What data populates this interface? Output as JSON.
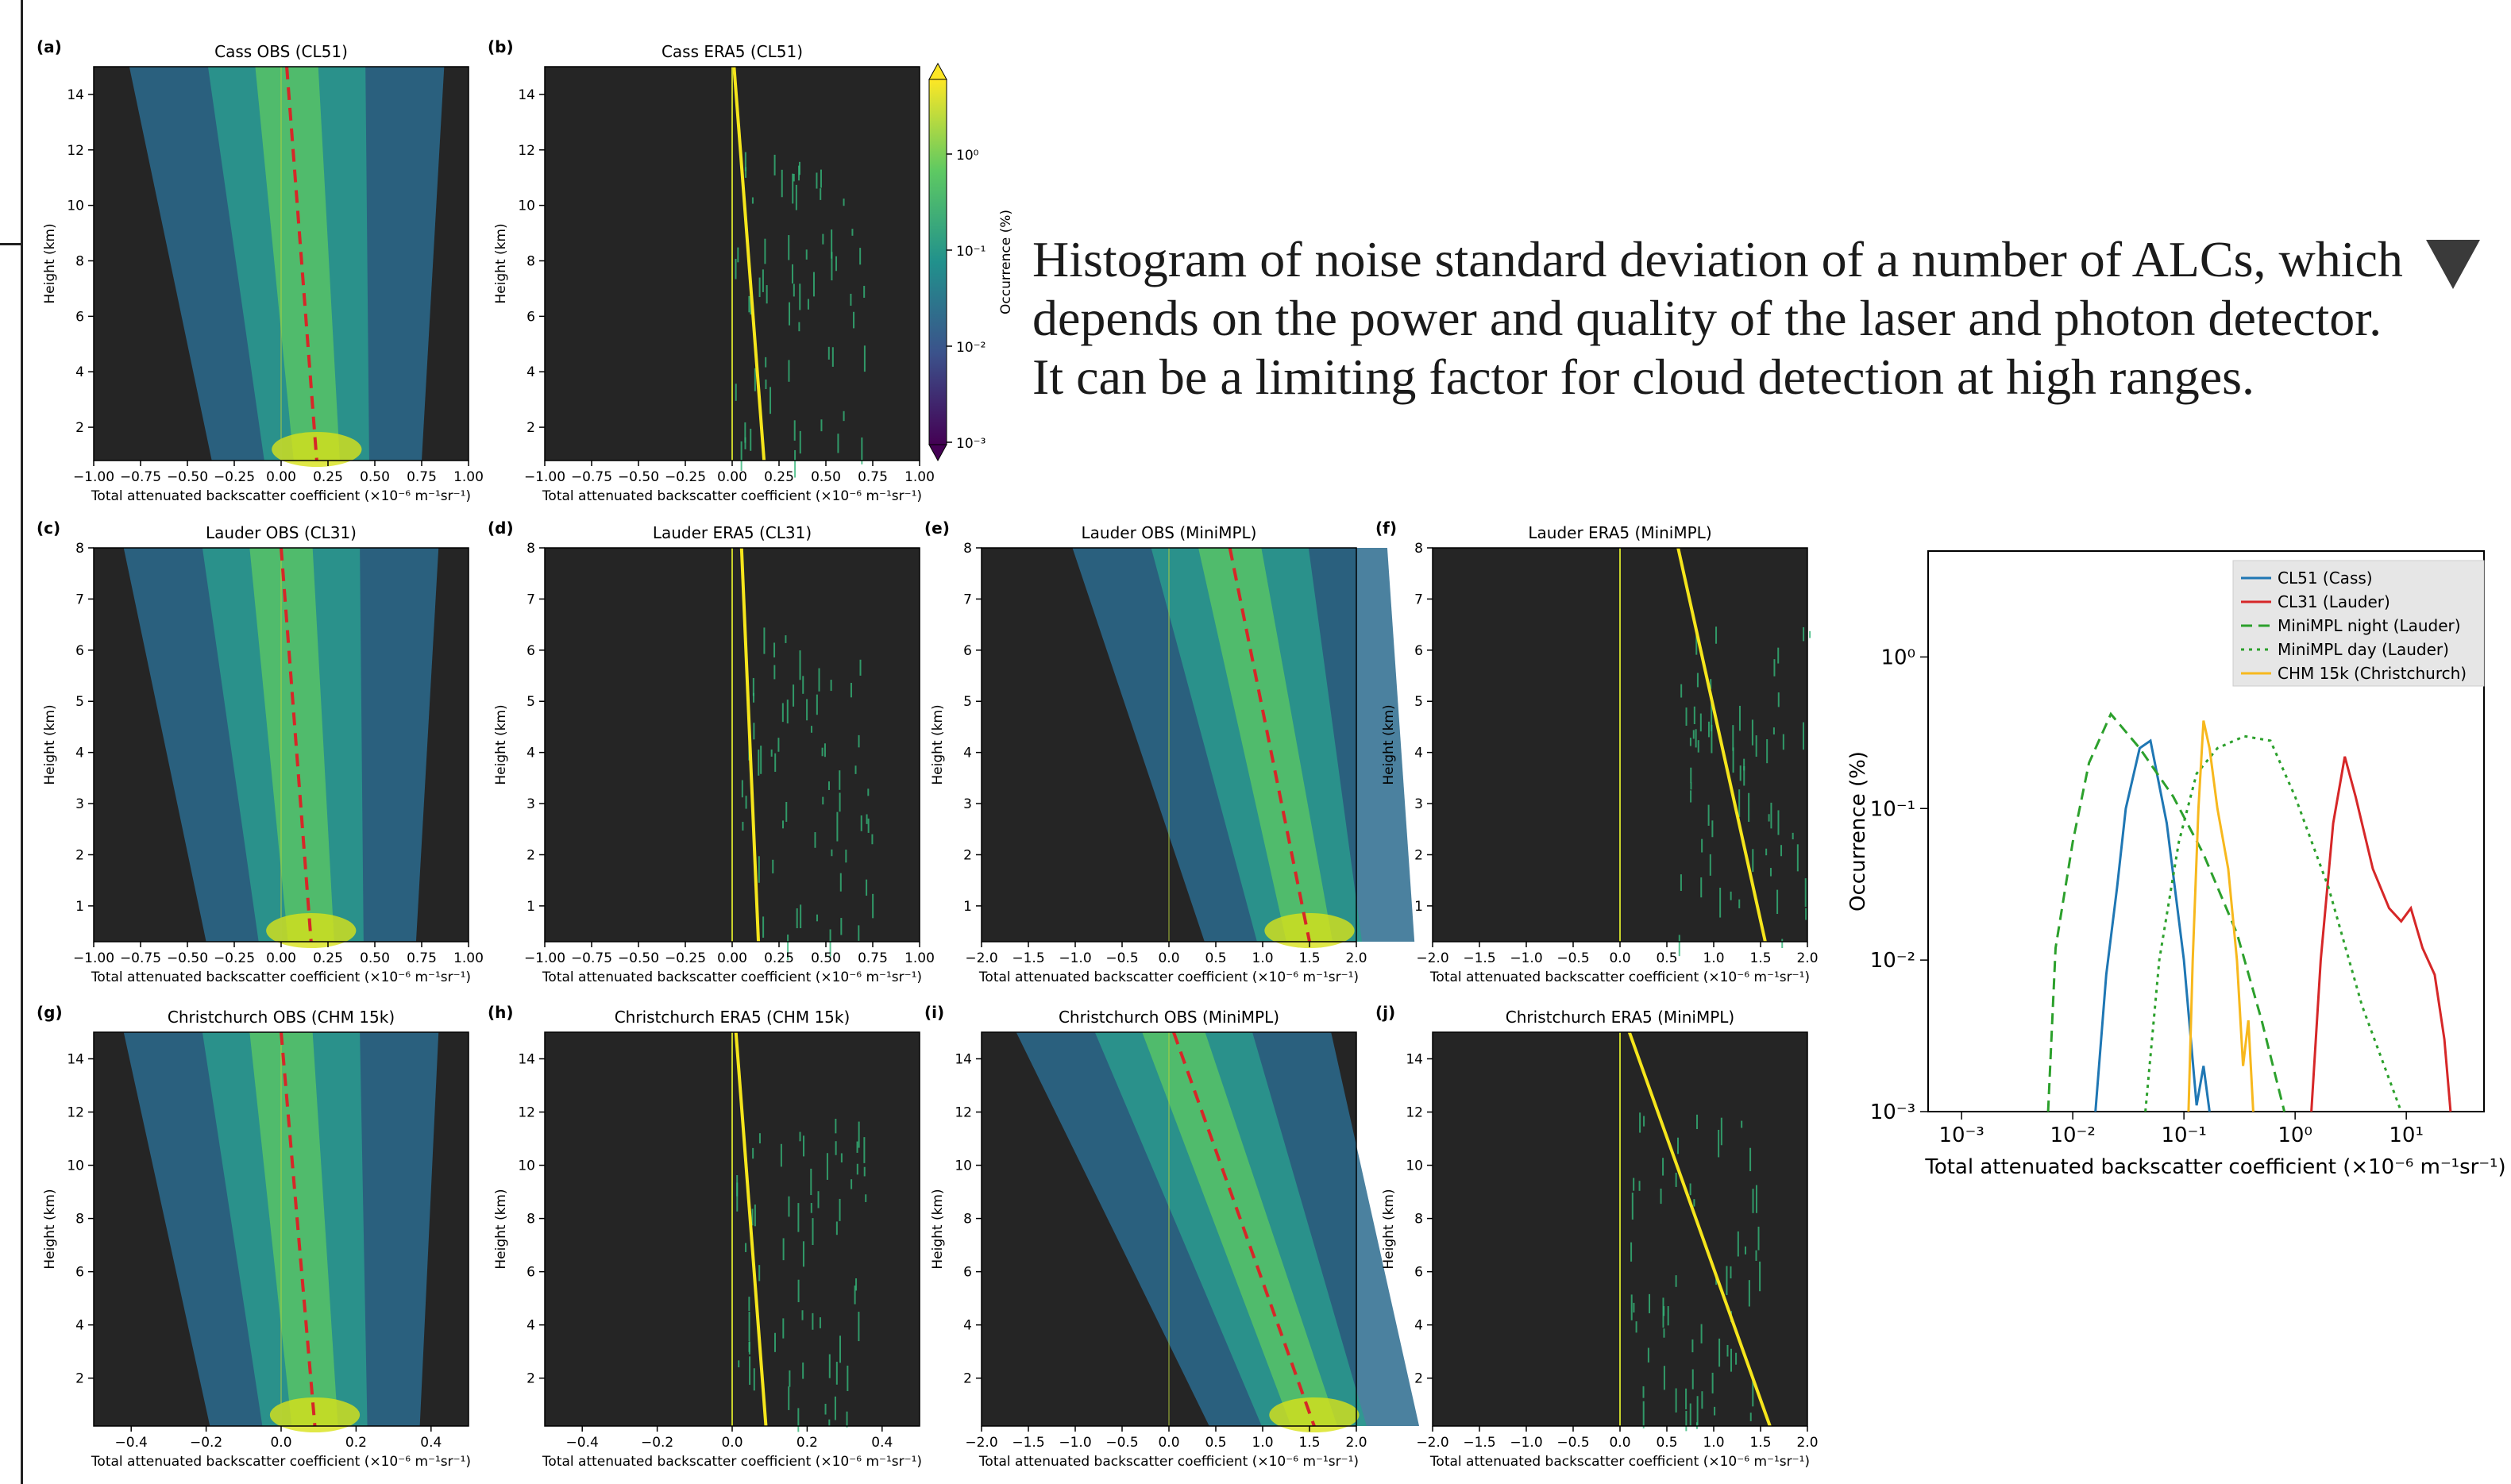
{
  "caption": "Histogram of noise standard deviation of a number of ALCs, which depends on the power and quality of the laser and photon detector. It can be a limiting factor for cloud detection at high ranges.",
  "icons": {
    "caption_toggle": "triangle-down-icon"
  },
  "colors": {
    "panel_bg": "#252525",
    "red_dash": "#d62728",
    "yellow": "#f5e51c",
    "cmap_low": "#440154",
    "cmap_mid": "#21918c",
    "cmap_high": "#fde725"
  },
  "xlabel": "Total attenuated backscatter coefficient (×10⁻⁶ m⁻¹sr⁻¹)",
  "ylabel": "Height (km)",
  "colorbar": {
    "label": "Occurrence (%)",
    "ticks": [
      "10⁰",
      "10⁻¹",
      "10⁻²",
      "10⁻³"
    ]
  },
  "panels": [
    {
      "id": "a",
      "title": "Cass OBS (CL51)",
      "kind": "obs",
      "xlim": [
        -1,
        1
      ],
      "ylim": [
        0.8,
        15
      ],
      "xticks": [
        "−1.00",
        "−0.75",
        "−0.50",
        "−0.25",
        "0.00",
        "0.25",
        "0.50",
        "0.75",
        "1.00"
      ],
      "xtickvals": [
        -1,
        -0.75,
        -0.5,
        -0.25,
        0,
        0.25,
        0.5,
        0.75,
        1
      ],
      "yticks": [
        2,
        4,
        6,
        8,
        10,
        12,
        14
      ],
      "mean_line": {
        "x": [
          0.03,
          0.19
        ],
        "y": [
          15,
          0.8
        ]
      }
    },
    {
      "id": "b",
      "title": "Cass ERA5 (CL51)",
      "kind": "era",
      "xlim": [
        -1,
        1
      ],
      "ylim": [
        0.8,
        15
      ],
      "xticks": [
        "−1.00",
        "−0.75",
        "−0.50",
        "−0.25",
        "0.00",
        "0.25",
        "0.50",
        "0.75",
        "1.00"
      ],
      "xtickvals": [
        -1,
        -0.75,
        -0.5,
        -0.25,
        0,
        0.25,
        0.5,
        0.75,
        1
      ],
      "yticks": [
        2,
        4,
        6,
        8,
        10,
        12,
        14
      ],
      "mean_line": {
        "x": [
          0.01,
          0.17
        ],
        "y": [
          15,
          0.8
        ]
      }
    },
    {
      "id": "c",
      "title": "Lauder OBS (CL31)",
      "kind": "obs",
      "xlim": [
        -1,
        1
      ],
      "ylim": [
        0.3,
        8
      ],
      "xticks": [
        "−1.00",
        "−0.75",
        "−0.50",
        "−0.25",
        "0.00",
        "0.25",
        "0.50",
        "0.75",
        "1.00"
      ],
      "xtickvals": [
        -1,
        -0.75,
        -0.5,
        -0.25,
        0,
        0.25,
        0.5,
        0.75,
        1
      ],
      "yticks": [
        1,
        2,
        3,
        4,
        5,
        6,
        7,
        8
      ],
      "mean_line": {
        "x": [
          0.0,
          0.16
        ],
        "y": [
          8,
          0.3
        ]
      }
    },
    {
      "id": "d",
      "title": "Lauder ERA5 (CL31)",
      "kind": "era",
      "xlim": [
        -1,
        1
      ],
      "ylim": [
        0.3,
        8
      ],
      "xticks": [
        "−1.00",
        "−0.75",
        "−0.50",
        "−0.25",
        "0.00",
        "0.25",
        "0.50",
        "0.75",
        "1.00"
      ],
      "xtickvals": [
        -1,
        -0.75,
        -0.5,
        -0.25,
        0,
        0.25,
        0.5,
        0.75,
        1
      ],
      "yticks": [
        1,
        2,
        3,
        4,
        5,
        6,
        7,
        8
      ],
      "mean_line": {
        "x": [
          0.05,
          0.14
        ],
        "y": [
          8,
          0.3
        ]
      }
    },
    {
      "id": "e",
      "title": "Lauder OBS (MiniMPL)",
      "kind": "obs",
      "xlim": [
        -2,
        2
      ],
      "ylim": [
        0.3,
        8
      ],
      "xticks": [
        "−2.0",
        "−1.5",
        "−1.0",
        "−0.5",
        "0.0",
        "0.5",
        "1.0",
        "1.5",
        "2.0"
      ],
      "xtickvals": [
        -2,
        -1.5,
        -1,
        -0.5,
        0,
        0.5,
        1,
        1.5,
        2
      ],
      "yticks": [
        1,
        2,
        3,
        4,
        5,
        6,
        7,
        8
      ],
      "mean_line": {
        "x": [
          0.65,
          1.5
        ],
        "y": [
          8,
          0.3
        ]
      }
    },
    {
      "id": "f",
      "title": "Lauder ERA5 (MiniMPL)",
      "kind": "era",
      "xlim": [
        -2,
        2
      ],
      "ylim": [
        0.3,
        8
      ],
      "xticks": [
        "−2.0",
        "−1.5",
        "−1.0",
        "−0.5",
        "0.0",
        "0.5",
        "1.0",
        "1.5",
        "2.0"
      ],
      "xtickvals": [
        -2,
        -1.5,
        -1,
        -0.5,
        0,
        0.5,
        1,
        1.5,
        2
      ],
      "yticks": [
        1,
        2,
        3,
        4,
        5,
        6,
        7,
        8
      ],
      "mean_line": {
        "x": [
          0.62,
          1.55
        ],
        "y": [
          8,
          0.3
        ]
      }
    },
    {
      "id": "g",
      "title": "Christchurch OBS (CHM 15k)",
      "kind": "obs",
      "xlim": [
        -0.5,
        0.5
      ],
      "ylim": [
        0.2,
        15
      ],
      "xticks": [
        "−0.4",
        "−0.2",
        "0.0",
        "0.2",
        "0.4"
      ],
      "xtickvals": [
        -0.4,
        -0.2,
        0,
        0.2,
        0.4
      ],
      "yticks": [
        2,
        4,
        6,
        8,
        10,
        12,
        14
      ],
      "mean_line": {
        "x": [
          0.0,
          0.09
        ],
        "y": [
          15,
          0.2
        ]
      }
    },
    {
      "id": "h",
      "title": "Christchurch ERA5 (CHM 15k)",
      "kind": "era",
      "xlim": [
        -0.5,
        0.5
      ],
      "ylim": [
        0.2,
        15
      ],
      "xticks": [
        "−0.4",
        "−0.2",
        "0.0",
        "0.2",
        "0.4"
      ],
      "xtickvals": [
        -0.4,
        -0.2,
        0,
        0.2,
        0.4
      ],
      "yticks": [
        2,
        4,
        6,
        8,
        10,
        12,
        14
      ],
      "mean_line": {
        "x": [
          0.01,
          0.09
        ],
        "y": [
          15,
          0.2
        ]
      }
    },
    {
      "id": "i",
      "title": "Christchurch OBS (MiniMPL)",
      "kind": "obs",
      "xlim": [
        -2,
        2
      ],
      "ylim": [
        0.2,
        15
      ],
      "xticks": [
        "−2.0",
        "−1.5",
        "−1.0",
        "−0.5",
        "0.0",
        "0.5",
        "1.0",
        "1.5",
        "2.0"
      ],
      "xtickvals": [
        -2,
        -1.5,
        -1,
        -0.5,
        0,
        0.5,
        1,
        1.5,
        2
      ],
      "yticks": [
        2,
        4,
        6,
        8,
        10,
        12,
        14
      ],
      "mean_line": {
        "x": [
          0.05,
          1.55
        ],
        "y": [
          15,
          0.2
        ]
      }
    },
    {
      "id": "j",
      "title": "Christchurch ERA5 (MiniMPL)",
      "kind": "era",
      "xlim": [
        -2,
        2
      ],
      "ylim": [
        0.2,
        15
      ],
      "xticks": [
        "−2.0",
        "−1.5",
        "−1.0",
        "−0.5",
        "0.0",
        "0.5",
        "1.0",
        "1.5",
        "2.0"
      ],
      "xtickvals": [
        -2,
        -1.5,
        -1,
        -0.5,
        0,
        0.5,
        1,
        1.5,
        2
      ],
      "yticks": [
        2,
        4,
        6,
        8,
        10,
        12,
        14
      ],
      "mean_line": {
        "x": [
          0.1,
          1.6
        ],
        "y": [
          15,
          0.2
        ]
      }
    }
  ],
  "chart_data": {
    "type": "line",
    "xlabel": "Total attenuated backscatter coefficient (×10⁻⁶ m⁻¹sr⁻¹)",
    "ylabel": "Occurrence (%)",
    "xscale": "log",
    "yscale": "log",
    "xlim": [
      0.0005,
      50
    ],
    "ylim": [
      0.001,
      5
    ],
    "xticks": [
      "10⁻³",
      "10⁻²",
      "10⁻¹",
      "10⁰",
      "10¹"
    ],
    "yticks": [
      "10⁰",
      "10⁻¹",
      "10⁻²",
      "10⁻³"
    ],
    "legend_position": "top-right",
    "series": [
      {
        "name": "CL51 (Cass)",
        "color": "#1f77b4",
        "style": "solid",
        "points": [
          [
            0.016,
            0.001
          ],
          [
            0.02,
            0.008
          ],
          [
            0.025,
            0.03
          ],
          [
            0.03,
            0.1
          ],
          [
            0.04,
            0.25
          ],
          [
            0.05,
            0.28
          ],
          [
            0.07,
            0.08
          ],
          [
            0.1,
            0.01
          ],
          [
            0.13,
            0.0011
          ],
          [
            0.15,
            0.002
          ],
          [
            0.17,
            0.001
          ]
        ]
      },
      {
        "name": "CL31 (Lauder)",
        "color": "#d62728",
        "style": "solid",
        "points": [
          [
            1.4,
            0.001
          ],
          [
            1.7,
            0.01
          ],
          [
            2.2,
            0.08
          ],
          [
            2.8,
            0.22
          ],
          [
            3.5,
            0.12
          ],
          [
            5,
            0.04
          ],
          [
            7,
            0.022
          ],
          [
            9,
            0.018
          ],
          [
            11,
            0.022
          ],
          [
            14,
            0.012
          ],
          [
            18,
            0.008
          ],
          [
            22,
            0.003
          ],
          [
            25,
            0.001
          ]
        ]
      },
      {
        "name": "MiniMPL night (Lauder)",
        "color": "#2ca02c",
        "style": "dashed",
        "points": [
          [
            0.006,
            0.001
          ],
          [
            0.007,
            0.012
          ],
          [
            0.01,
            0.06
          ],
          [
            0.014,
            0.2
          ],
          [
            0.022,
            0.42
          ],
          [
            0.04,
            0.25
          ],
          [
            0.08,
            0.12
          ],
          [
            0.15,
            0.05
          ],
          [
            0.3,
            0.015
          ],
          [
            0.5,
            0.004
          ],
          [
            0.8,
            0.001
          ]
        ]
      },
      {
        "name": "MiniMPL day (Lauder)",
        "color": "#2ca02c",
        "style": "dotted",
        "points": [
          [
            0.045,
            0.001
          ],
          [
            0.06,
            0.01
          ],
          [
            0.09,
            0.06
          ],
          [
            0.13,
            0.17
          ],
          [
            0.2,
            0.25
          ],
          [
            0.35,
            0.3
          ],
          [
            0.6,
            0.28
          ],
          [
            1.0,
            0.12
          ],
          [
            2,
            0.03
          ],
          [
            4,
            0.005
          ],
          [
            9,
            0.001
          ]
        ]
      },
      {
        "name": "CHM 15k (Christchurch)",
        "color": "#f7b81d",
        "style": "solid",
        "points": [
          [
            0.11,
            0.001
          ],
          [
            0.12,
            0.01
          ],
          [
            0.135,
            0.1
          ],
          [
            0.15,
            0.38
          ],
          [
            0.17,
            0.25
          ],
          [
            0.2,
            0.1
          ],
          [
            0.25,
            0.04
          ],
          [
            0.3,
            0.01
          ],
          [
            0.34,
            0.002
          ],
          [
            0.38,
            0.004
          ],
          [
            0.42,
            0.001
          ]
        ]
      }
    ]
  }
}
